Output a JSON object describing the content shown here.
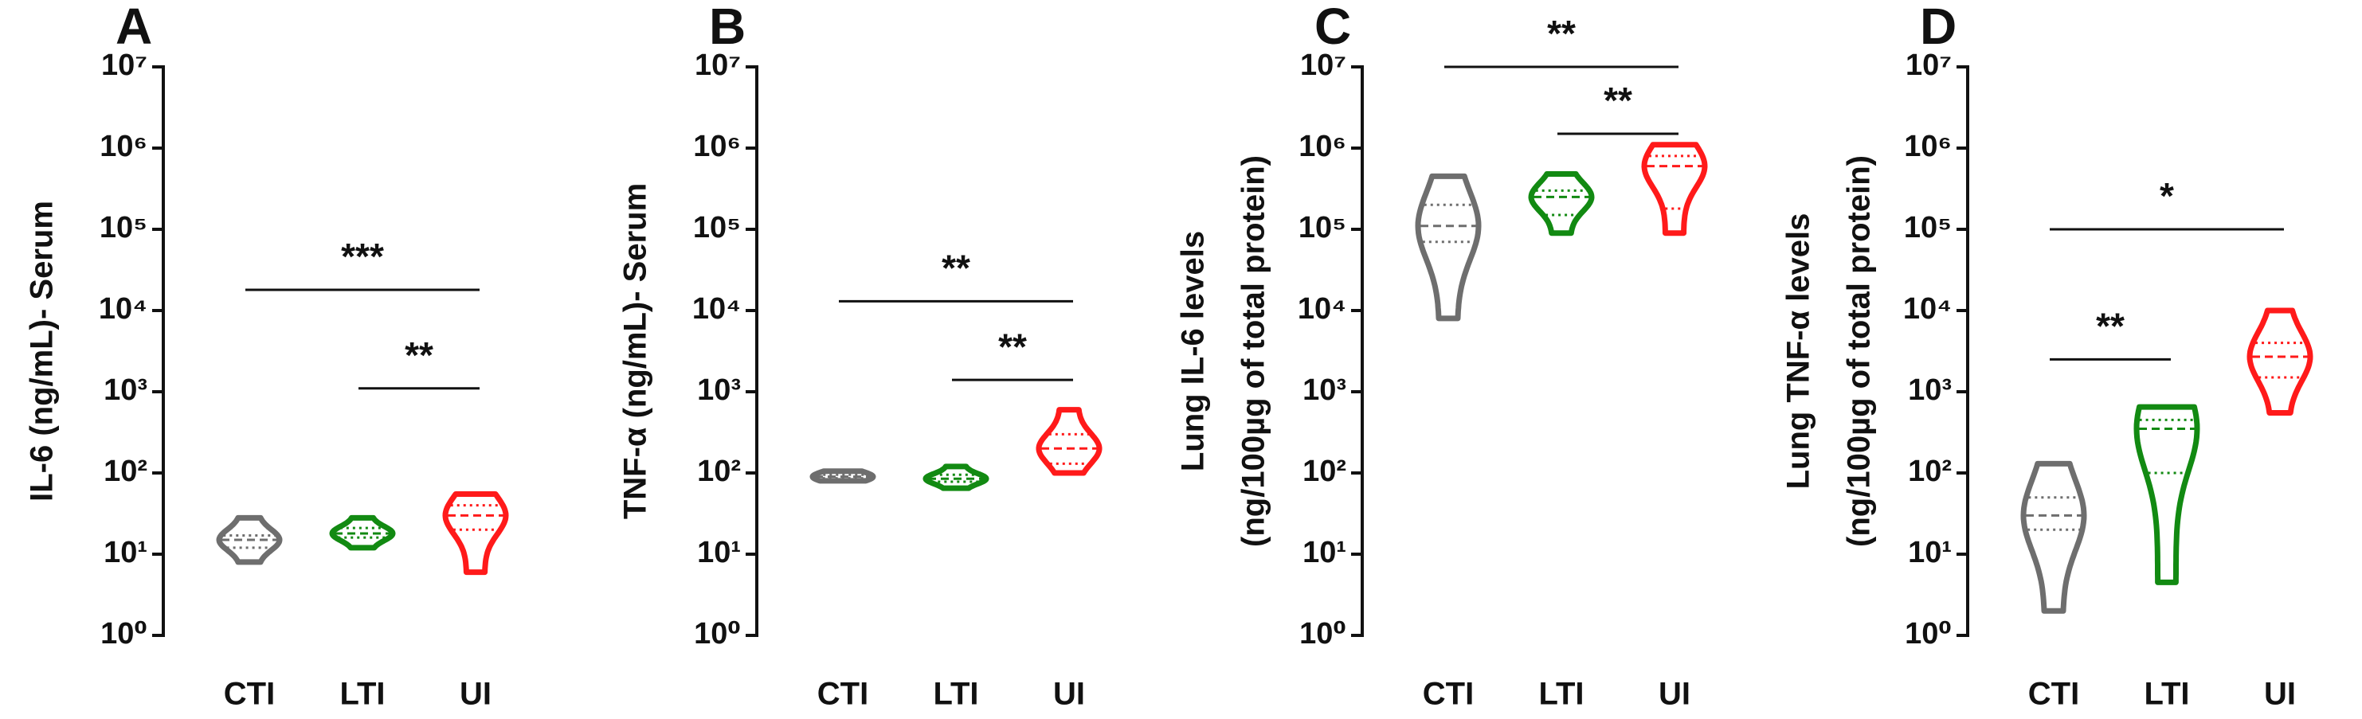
{
  "chart_data": [
    {
      "type": "violin",
      "label": "A",
      "ylabel": [
        "IL-6 (ng/mL)- Serum"
      ],
      "log": true,
      "categories": [
        "CTI",
        "LTI",
        "UI"
      ],
      "colors": [
        "#6e6e6e",
        "#128a12",
        "#ff1a1a"
      ],
      "stats": [
        {
          "min": 8,
          "q1": 12,
          "median": 15,
          "q3": 17,
          "max": 28
        },
        {
          "min": 12,
          "q1": 16,
          "median": 18,
          "q3": 21,
          "max": 28
        },
        {
          "min": 6,
          "q1": 20,
          "median": 30,
          "q3": 40,
          "max": 55
        }
      ],
      "ylim": [
        1,
        10000000
      ],
      "yticks": [
        {
          "value": 1,
          "label": "10⁰"
        },
        {
          "value": 10,
          "label": "10¹"
        },
        {
          "value": 100,
          "label": "10²"
        },
        {
          "value": 1000,
          "label": "10³"
        },
        {
          "value": 10000,
          "label": "10⁴"
        },
        {
          "value": 100000,
          "label": "10⁵"
        },
        {
          "value": 1000000,
          "label": "10⁶"
        },
        {
          "value": 10000000,
          "label": "10⁷"
        }
      ],
      "significance": [
        {
          "from": 0,
          "to": 2,
          "y": 18000,
          "label": "***"
        },
        {
          "from": 1,
          "to": 2,
          "y": 1100,
          "label": "**"
        }
      ]
    },
    {
      "type": "violin",
      "label": "B",
      "ylabel": [
        "TNF-α (ng/mL)- Serum"
      ],
      "log": true,
      "categories": [
        "CTI",
        "LTI",
        "UI"
      ],
      "colors": [
        "#6e6e6e",
        "#128a12",
        "#ff1a1a"
      ],
      "stats": [
        {
          "min": 80,
          "q1": 86,
          "median": 90,
          "q3": 95,
          "max": 105
        },
        {
          "min": 65,
          "q1": 78,
          "median": 85,
          "q3": 95,
          "max": 120
        },
        {
          "min": 100,
          "q1": 130,
          "median": 200,
          "q3": 300,
          "max": 600
        }
      ],
      "ylim": [
        1,
        10000000
      ],
      "yticks": [
        {
          "value": 1,
          "label": "10⁰"
        },
        {
          "value": 10,
          "label": "10¹"
        },
        {
          "value": 100,
          "label": "10²"
        },
        {
          "value": 1000,
          "label": "10³"
        },
        {
          "value": 10000,
          "label": "10⁴"
        },
        {
          "value": 100000,
          "label": "10⁵"
        },
        {
          "value": 1000000,
          "label": "10⁶"
        },
        {
          "value": 10000000,
          "label": "10⁷"
        }
      ],
      "significance": [
        {
          "from": 0,
          "to": 2,
          "y": 13000,
          "label": "**"
        },
        {
          "from": 1,
          "to": 2,
          "y": 1400,
          "label": "**"
        }
      ]
    },
    {
      "type": "violin",
      "label": "C",
      "ylabel": [
        "Lung IL-6 levels",
        "(ng/100µg of total protein)"
      ],
      "log": true,
      "categories": [
        "CTI",
        "LTI",
        "UI"
      ],
      "colors": [
        "#6e6e6e",
        "#128a12",
        "#ff1a1a"
      ],
      "stats": [
        {
          "min": 8000,
          "q1": 70000,
          "median": 110000,
          "q3": 200000,
          "max": 450000
        },
        {
          "min": 90000,
          "q1": 150000,
          "median": 250000,
          "q3": 300000,
          "max": 480000
        },
        {
          "min": 90000,
          "q1": 180000,
          "median": 600000,
          "q3": 800000,
          "max": 1100000
        }
      ],
      "ylim": [
        1,
        10000000
      ],
      "yticks": [
        {
          "value": 1,
          "label": "10⁰"
        },
        {
          "value": 10,
          "label": "10¹"
        },
        {
          "value": 100,
          "label": "10²"
        },
        {
          "value": 1000,
          "label": "10³"
        },
        {
          "value": 10000,
          "label": "10⁴"
        },
        {
          "value": 100000,
          "label": "10⁵"
        },
        {
          "value": 1000000,
          "label": "10⁶"
        },
        {
          "value": 10000000,
          "label": "10⁷"
        }
      ],
      "significance": [
        {
          "from": 0,
          "to": 2,
          "y": 10000000,
          "label": "**"
        },
        {
          "from": 1,
          "to": 2,
          "y": 1500000,
          "label": "**"
        }
      ]
    },
    {
      "type": "violin",
      "label": "D",
      "ylabel": [
        "Lung TNF-α levels",
        "(ng/100µg of total protein)"
      ],
      "log": true,
      "categories": [
        "CTI",
        "LTI",
        "UI"
      ],
      "colors": [
        "#6e6e6e",
        "#128a12",
        "#ff1a1a"
      ],
      "stats": [
        {
          "min": 2,
          "q1": 20,
          "median": 30,
          "q3": 50,
          "max": 130
        },
        {
          "min": 4.5,
          "q1": 100,
          "median": 350,
          "q3": 450,
          "max": 650
        },
        {
          "min": 550,
          "q1": 1500,
          "median": 2700,
          "q3": 4000,
          "max": 10000
        }
      ],
      "ylim": [
        1,
        10000000
      ],
      "yticks": [
        {
          "value": 1,
          "label": "10⁰"
        },
        {
          "value": 10,
          "label": "10¹"
        },
        {
          "value": 100,
          "label": "10²"
        },
        {
          "value": 1000,
          "label": "10³"
        },
        {
          "value": 10000,
          "label": "10⁴"
        },
        {
          "value": 100000,
          "label": "10⁵"
        },
        {
          "value": 1000000,
          "label": "10⁶"
        },
        {
          "value": 10000000,
          "label": "10⁷"
        }
      ],
      "significance": [
        {
          "from": 0,
          "to": 2,
          "y": 100000,
          "label": "*"
        },
        {
          "from": 0,
          "to": 1,
          "y": 2500,
          "label": "**"
        }
      ]
    }
  ]
}
